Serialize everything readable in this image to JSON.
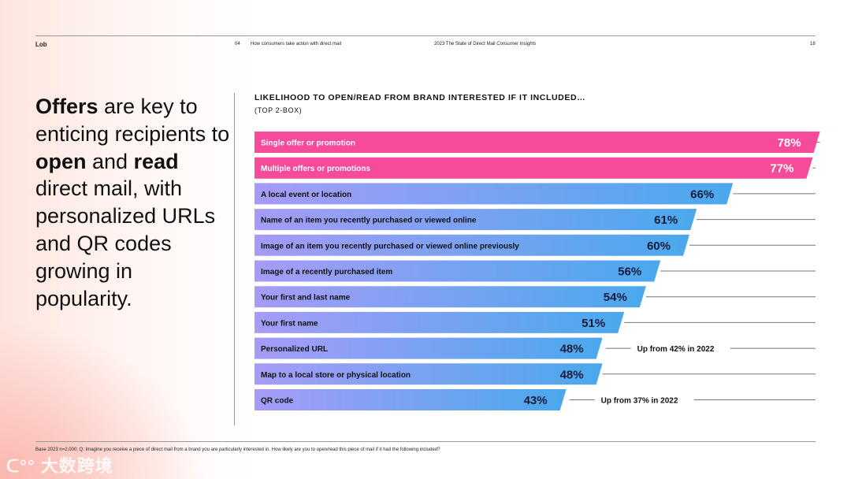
{
  "header": {
    "brand": "Lob",
    "section_number": "04",
    "section_title": "How consumers take action with direct mail",
    "report_title": "2023 The State of Direct Mail",
    "report_subtitle": "Consumer Insights",
    "page_number": "18"
  },
  "headline": {
    "p1": "Offers",
    "p2": " are key to enticing recipients to ",
    "p3": "open",
    "p4": " and ",
    "p5": "read",
    "p6": " direct mail, with personalized URLs and QR codes growing in popularity."
  },
  "footer": {
    "note": "Base 2023 n=2,000; Q: Imagine you receive a piece of direct mail from a brand you are particularly interested in. How likely are you to open/read this piece of mail if it had the following included?"
  },
  "watermark": "大数跨境",
  "colors": {
    "pink": "#f64b9a",
    "blue_start": "#a69cf7",
    "blue_end": "#4aa8ec"
  },
  "chart_data": {
    "type": "bar",
    "orientation": "horizontal",
    "title": "LIKELIHOOD TO OPEN/READ FROM BRAND INTERESTED IF IT INCLUDED…",
    "subtitle": "(TOP 2-BOX)",
    "xlim": [
      0,
      100
    ],
    "categories": [
      "Single offer or promotion",
      "Multiple offers or promotions",
      "A local event or location",
      "Name of an item you recently purchased or viewed online",
      "Image of an item you recently purchased or viewed online previously",
      "Image of a recently purchased item",
      "Your first and last name",
      "Your first name",
      "Personalized URL",
      "Map to a local store or physical location",
      "QR code"
    ],
    "values": [
      78,
      77,
      66,
      61,
      60,
      56,
      54,
      51,
      48,
      48,
      43
    ],
    "highlight": [
      true,
      true,
      false,
      false,
      false,
      false,
      false,
      false,
      false,
      false,
      false
    ],
    "annotations": [
      {
        "category": "Personalized URL",
        "text": "Up from 42% in 2022"
      },
      {
        "category": "QR code",
        "text": "Up from 37% in 2022"
      }
    ]
  }
}
